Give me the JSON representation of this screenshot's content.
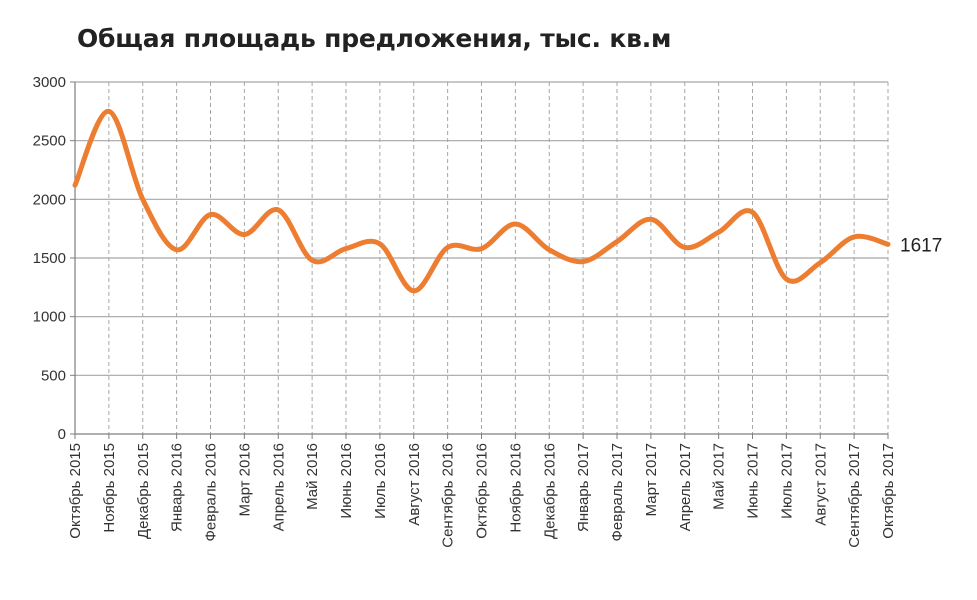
{
  "chart_data": {
    "type": "line",
    "title": "Общая площадь предложения, тыс. кв.м",
    "x": [
      "Октябрь 2015",
      "Ноябрь 2015",
      "Декабрь 2015",
      "Январь 2016",
      "Февраль 2016",
      "Март 2016",
      "Апрель 2016",
      "Май 2016",
      "Июнь 2016",
      "Июль 2016",
      "Август 2016",
      "Сентябрь 2016",
      "Октябрь 2016",
      "Ноябрь 2016",
      "Декабрь 2016",
      "Январь 2017",
      "Февраль 2017",
      "Март 2017",
      "Апрель 2017",
      "Май 2017",
      "Июнь 2017",
      "Июль 2017",
      "Август 2017",
      "Сентябрь 2017",
      "Октябрь 2017"
    ],
    "series": [
      {
        "values": [
          2120,
          2750,
          2000,
          1570,
          1870,
          1700,
          1910,
          1480,
          1580,
          1620,
          1220,
          1590,
          1580,
          1790,
          1570,
          1470,
          1640,
          1830,
          1590,
          1720,
          1890,
          1320,
          1460,
          1680,
          1617
        ]
      }
    ],
    "yticks": [
      "0",
      "500",
      "1000",
      "1500",
      "2000",
      "2500",
      "3000"
    ],
    "ylim": [
      0,
      3000
    ],
    "end_label": "1617",
    "grid": {
      "horizontal": "solid",
      "vertical": "dashed"
    },
    "colors": {
      "line": "#ED7D31",
      "grid": "#A6A6A6",
      "axis": "#7F7F7F"
    }
  }
}
